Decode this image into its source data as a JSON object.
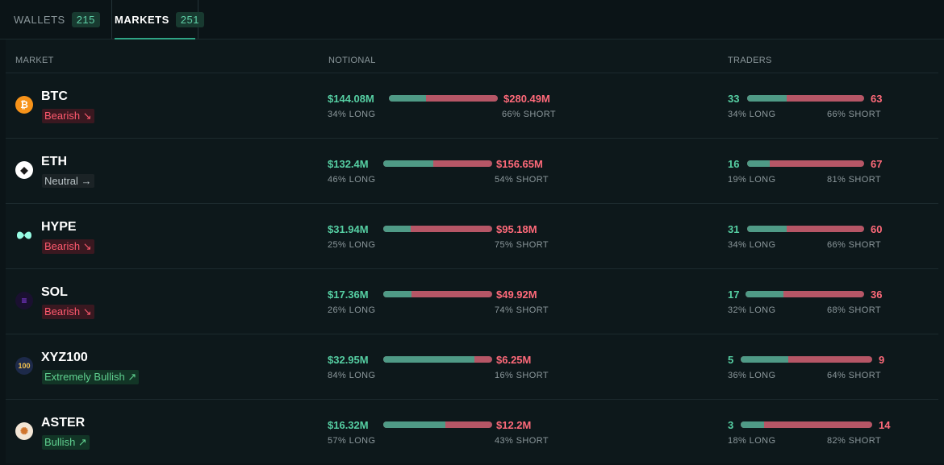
{
  "tabs": {
    "wallets": {
      "label": "WALLETS",
      "count": "215"
    },
    "markets": {
      "label": "MARKETS",
      "count": "251"
    }
  },
  "headers": {
    "market": "MARKET",
    "notional": "NOTIONAL",
    "traders": "TRADERS"
  },
  "colors": {
    "long": "#56cfa3",
    "short": "#ff6a7a",
    "bearish": "#ff5a6e",
    "bullish": "#5fd08f",
    "neutral": "#b9c3c6"
  },
  "markets": [
    {
      "symbol": "BTC",
      "icon": "bitcoin-icon",
      "sentiment": "Bearish",
      "sentiment_arrow": "↘",
      "notional_long": "$144.08M",
      "notional_short": "$280.49M",
      "notional_long_pct_label": "34% LONG",
      "notional_short_pct_label": "66% SHORT",
      "notional_long_fraction": 0.34,
      "traders_long": "33",
      "traders_short": "63",
      "traders_long_pct_label": "34% LONG",
      "traders_short_pct_label": "66% SHORT",
      "traders_long_fraction": 0.34
    },
    {
      "symbol": "ETH",
      "icon": "ethereum-icon",
      "sentiment": "Neutral",
      "sentiment_arrow": "→",
      "notional_long": "$132.4M",
      "notional_short": "$156.65M",
      "notional_long_pct_label": "46% LONG",
      "notional_short_pct_label": "54% SHORT",
      "notional_long_fraction": 0.46,
      "traders_long": "16",
      "traders_short": "67",
      "traders_long_pct_label": "19% LONG",
      "traders_short_pct_label": "81% SHORT",
      "traders_long_fraction": 0.19
    },
    {
      "symbol": "HYPE",
      "icon": "hyperliquid-icon",
      "sentiment": "Bearish",
      "sentiment_arrow": "↘",
      "notional_long": "$31.94M",
      "notional_short": "$95.18M",
      "notional_long_pct_label": "25% LONG",
      "notional_short_pct_label": "75% SHORT",
      "notional_long_fraction": 0.25,
      "traders_long": "31",
      "traders_short": "60",
      "traders_long_pct_label": "34% LONG",
      "traders_short_pct_label": "66% SHORT",
      "traders_long_fraction": 0.34
    },
    {
      "symbol": "SOL",
      "icon": "solana-icon",
      "sentiment": "Bearish",
      "sentiment_arrow": "↘",
      "notional_long": "$17.36M",
      "notional_short": "$49.92M",
      "notional_long_pct_label": "26% LONG",
      "notional_short_pct_label": "74% SHORT",
      "notional_long_fraction": 0.26,
      "traders_long": "17",
      "traders_short": "36",
      "traders_long_pct_label": "32% LONG",
      "traders_short_pct_label": "68% SHORT",
      "traders_long_fraction": 0.32
    },
    {
      "symbol": "XYZ100",
      "icon": "xyz100-icon",
      "icon_text": "100",
      "sentiment": "Extremely Bullish",
      "sentiment_arrow": "↗",
      "notional_long": "$32.95M",
      "notional_short": "$6.25M",
      "notional_long_pct_label": "84% LONG",
      "notional_short_pct_label": "16% SHORT",
      "notional_long_fraction": 0.84,
      "traders_long": "5",
      "traders_short": "9",
      "traders_long_pct_label": "36% LONG",
      "traders_short_pct_label": "64% SHORT",
      "traders_long_fraction": 0.36
    },
    {
      "symbol": "ASTER",
      "icon": "aster-icon",
      "sentiment": "Bullish",
      "sentiment_arrow": "↗",
      "notional_long": "$16.32M",
      "notional_short": "$12.2M",
      "notional_long_pct_label": "57% LONG",
      "notional_short_pct_label": "43% SHORT",
      "notional_long_fraction": 0.57,
      "traders_long": "3",
      "traders_short": "14",
      "traders_long_pct_label": "18% LONG",
      "traders_short_pct_label": "82% SHORT",
      "traders_long_fraction": 0.18
    }
  ]
}
